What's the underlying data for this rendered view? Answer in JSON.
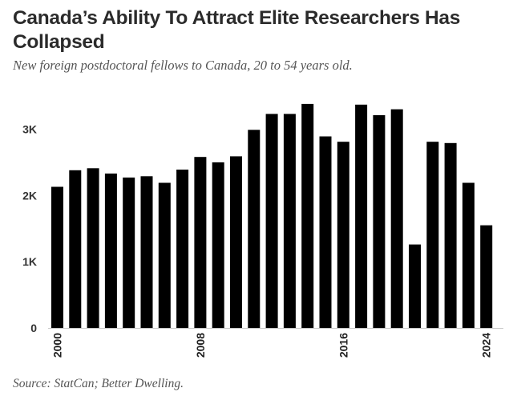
{
  "chart_data": {
    "type": "bar",
    "title": "Canada’s Ability To Attract Elite Researchers Has Collapsed",
    "subtitle": "New foreign postdoctoral fellows to Canada, 20 to 54 years old.",
    "source": "Source: StatCan; Better Dwelling.",
    "categories": [
      2000,
      2001,
      2002,
      2003,
      2004,
      2005,
      2006,
      2007,
      2008,
      2009,
      2010,
      2011,
      2012,
      2013,
      2014,
      2015,
      2016,
      2017,
      2018,
      2019,
      2020,
      2021,
      2022,
      2023,
      2024
    ],
    "values": [
      2130,
      2380,
      2410,
      2330,
      2270,
      2290,
      2190,
      2390,
      2580,
      2500,
      2590,
      2990,
      3230,
      3230,
      3380,
      2890,
      2810,
      3370,
      3210,
      3300,
      1260,
      2810,
      2790,
      2190,
      1550
    ],
    "x_tick_labels": [
      "2000",
      "2008",
      "2016",
      "2024"
    ],
    "y_ticks": [
      0,
      1000,
      2000,
      3000
    ],
    "y_tick_labels": [
      "0",
      "1K",
      "2K",
      "3K"
    ],
    "ylim": [
      0,
      3500
    ],
    "xlabel": "",
    "ylabel": "",
    "grid": false,
    "bar_color": "#000000"
  }
}
